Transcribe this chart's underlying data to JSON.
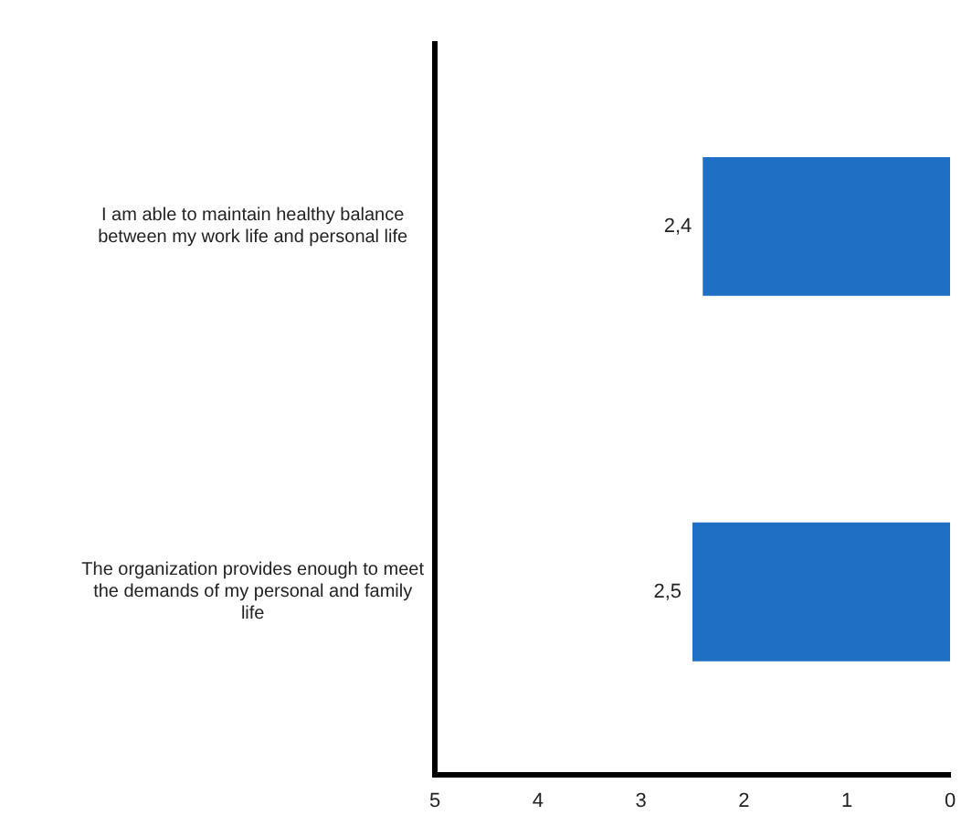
{
  "chart_data": {
    "type": "bar",
    "orientation": "horizontal",
    "categories": [
      "I am able to maintain healthy balance between my work life and personal life",
      "The organization provides enough to meet the demands of my personal and family life"
    ],
    "values": [
      2.4,
      2.5
    ],
    "color": "#1f6fc5",
    "value_labels": [
      "2,4",
      "2,5"
    ],
    "xlim": [
      5,
      0
    ],
    "xticks": [
      5,
      4,
      3,
      2,
      1,
      0
    ],
    "grid": false,
    "legend": false
  }
}
